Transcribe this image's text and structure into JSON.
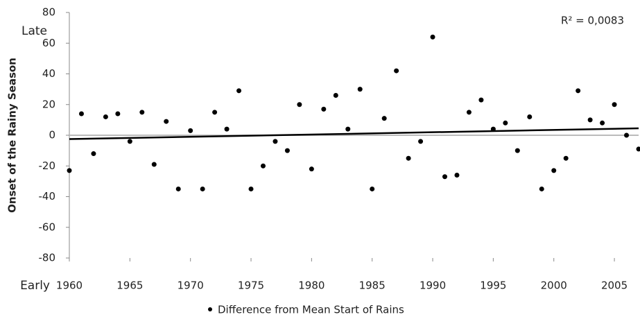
{
  "chart_data": {
    "type": "scatter",
    "y_label": "Onset of the Rainy Season",
    "late_label": "Late",
    "early_label": "Early",
    "annotation": "R² = 0,0083",
    "x": [
      1960,
      1961,
      1962,
      1963,
      1964,
      1965,
      1966,
      1967,
      1968,
      1969,
      1970,
      1971,
      1972,
      1973,
      1974,
      1975,
      1976,
      1977,
      1978,
      1979,
      1980,
      1981,
      1982,
      1983,
      1984,
      1985,
      1986,
      1987,
      1988,
      1989,
      1990,
      1991,
      1992,
      1993,
      1994,
      1995,
      1996,
      1997,
      1998,
      1999,
      2000,
      2001,
      2002,
      2003,
      2004,
      2005,
      2006,
      2007
    ],
    "series": [
      {
        "name": "Difference from Mean Start of Rains",
        "color": "#000000",
        "values": [
          -23,
          14,
          -12,
          12,
          14,
          -4,
          15,
          -19,
          9,
          -35,
          3,
          -35,
          15,
          4,
          29,
          -35,
          -20,
          -4,
          -10,
          20,
          -22,
          17,
          26,
          4,
          30,
          -35,
          11,
          42,
          -15,
          -4,
          64,
          -27,
          -26,
          15,
          23,
          4,
          8,
          -10,
          12,
          -35,
          -23,
          -15,
          29,
          10,
          8,
          20,
          0,
          -9
        ]
      }
    ],
    "trendline": {
      "x": [
        1960,
        2007
      ],
      "y": [
        -2.5,
        4.5
      ],
      "color": "#000000"
    },
    "xlim": [
      1960,
      2007
    ],
    "xticks": [
      1960,
      1965,
      1970,
      1975,
      1980,
      1985,
      1990,
      1995,
      2000,
      2005
    ],
    "ylim": [
      -80,
      80
    ],
    "yticks": [
      -80,
      -60,
      -40,
      -20,
      0,
      20,
      40,
      60,
      80
    ],
    "legend": "bottom"
  }
}
